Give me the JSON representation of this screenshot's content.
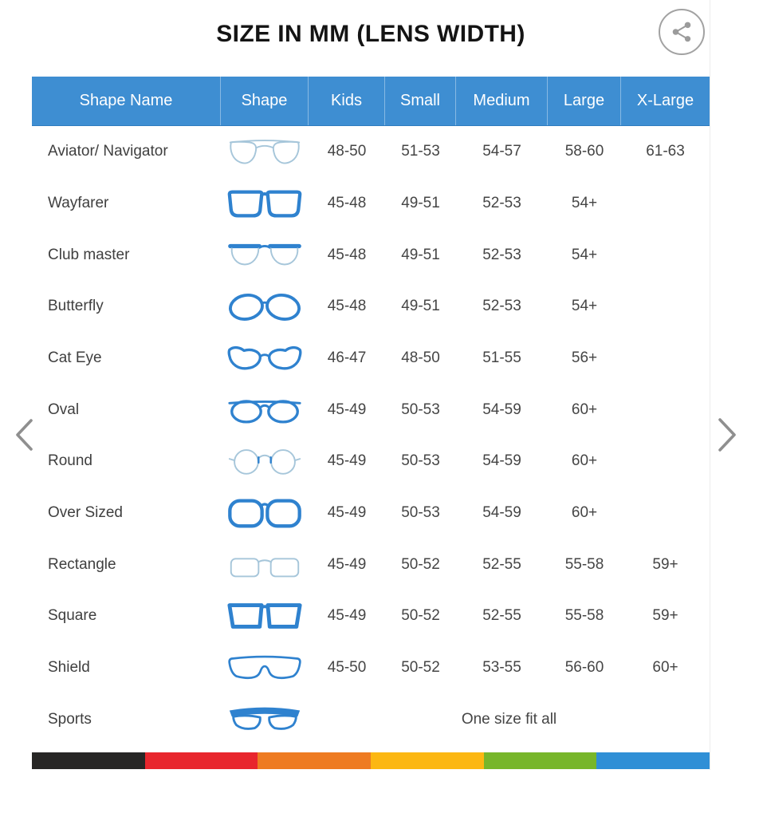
{
  "title": "SIZE IN MM (LENS WIDTH)",
  "share": {
    "icon": "share-icon"
  },
  "carousel": {
    "prev_icon": "chevron-left-icon",
    "next_icon": "chevron-right-icon"
  },
  "table": {
    "columns": [
      "Shape Name",
      "Shape",
      "Kids",
      "Small",
      "Medium",
      "Large",
      "X-Large"
    ],
    "size_keys": [
      "kids",
      "small",
      "medium",
      "large",
      "xlarge"
    ],
    "rows": [
      {
        "name": "Aviator/ Navigator",
        "icon": "aviator-glasses-icon",
        "sizes": [
          "48-50",
          "51-53",
          "54-57",
          "58-60",
          "61-63"
        ]
      },
      {
        "name": "Wayfarer",
        "icon": "wayfarer-glasses-icon",
        "sizes": [
          "45-48",
          "49-51",
          "52-53",
          "54+",
          ""
        ]
      },
      {
        "name": "Club master",
        "icon": "clubmaster-glasses-icon",
        "sizes": [
          "45-48",
          "49-51",
          "52-53",
          "54+",
          ""
        ]
      },
      {
        "name": "Butterfly",
        "icon": "butterfly-glasses-icon",
        "sizes": [
          "45-48",
          "49-51",
          "52-53",
          "54+",
          ""
        ]
      },
      {
        "name": "Cat Eye",
        "icon": "cateye-glasses-icon",
        "sizes": [
          "46-47",
          "48-50",
          "51-55",
          "56+",
          ""
        ]
      },
      {
        "name": "Oval",
        "icon": "oval-glasses-icon",
        "sizes": [
          "45-49",
          "50-53",
          "54-59",
          "60+",
          ""
        ]
      },
      {
        "name": "Round",
        "icon": "round-glasses-icon",
        "sizes": [
          "45-49",
          "50-53",
          "54-59",
          "60+",
          ""
        ]
      },
      {
        "name": "Over Sized",
        "icon": "oversized-glasses-icon",
        "sizes": [
          "45-49",
          "50-53",
          "54-59",
          "60+",
          ""
        ]
      },
      {
        "name": "Rectangle",
        "icon": "rectangle-glasses-icon",
        "sizes": [
          "45-49",
          "50-52",
          "52-55",
          "55-58",
          "59+"
        ]
      },
      {
        "name": "Square",
        "icon": "square-glasses-icon",
        "sizes": [
          "45-49",
          "50-52",
          "52-55",
          "55-58",
          "59+"
        ]
      },
      {
        "name": "Shield",
        "icon": "shield-glasses-icon",
        "sizes": [
          "45-50",
          "50-52",
          "53-55",
          "56-60",
          "60+"
        ]
      },
      {
        "name": "Sports",
        "icon": "sports-glasses-icon",
        "span_text": "One size fit all"
      }
    ]
  },
  "footer_stripe_colors": [
    "#272625",
    "#e8262d",
    "#ee7b22",
    "#fcb712",
    "#77b62a",
    "#2f8fd6"
  ],
  "colors": {
    "header_bg": "#3e8ed2",
    "header_text": "#ffffff",
    "body_text": "#454545",
    "icon_blue": "#2f82cf",
    "icon_light": "#a6c6da",
    "chevron": "#8f8f8f",
    "share": "#9b9b9b"
  }
}
